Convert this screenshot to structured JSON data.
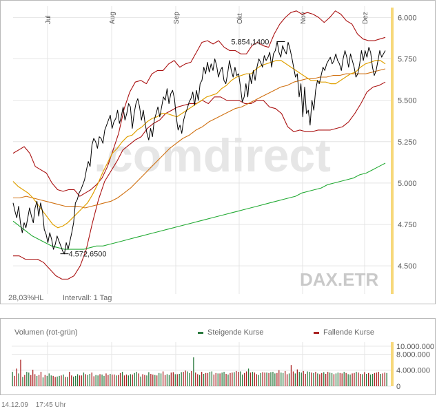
{
  "chart_data": [
    {
      "type": "line",
      "instrument": "DAX.ETR",
      "watermark": ".comdirect",
      "x_ticks": [
        "Jul",
        "Aug",
        "Sep",
        "Okt",
        "Nov",
        "Dez"
      ],
      "y_ticks": [
        "6.000",
        "5.750",
        "5.500",
        "5.250",
        "5.000",
        "4.750",
        "4.500"
      ],
      "ylim": [
        4330,
        6060
      ],
      "grid": true,
      "volatility_label": "28,03%HL",
      "interval_label": "Intervall: 1 Tag",
      "annotations": [
        {
          "text": "5.854,1400",
          "value": 5854.14,
          "index": 146
        },
        {
          "text": "4.572,6500",
          "value": 4572.65,
          "index": 28
        }
      ],
      "colors": {
        "price": "#000000",
        "bollinger": "#aa1111",
        "sma_short": "#e0a000",
        "sma_mid": "#d07010",
        "sma_long": "#22aa33",
        "right_bar": "#f7d87a"
      },
      "series": [
        {
          "role": "price",
          "values": [
            4880,
            4830,
            4790,
            4860,
            4760,
            4700,
            4760,
            4730,
            4790,
            4850,
            4800,
            4760,
            4850,
            4890,
            4800,
            4880,
            4830,
            4720,
            4690,
            4640,
            4700,
            4660,
            4600,
            4630,
            4680,
            4650,
            4620,
            4590,
            4572.65,
            4640,
            4600,
            4650,
            4700,
            4760,
            4880,
            4900,
            4940,
            4960,
            4990,
            5020,
            5080,
            5130,
            5100,
            5230,
            5270,
            5250,
            5210,
            5280,
            5270,
            5240,
            5320,
            5350,
            5380,
            5410,
            5330,
            5370,
            5390,
            5440,
            5360,
            5400,
            5460,
            5380,
            5420,
            5480,
            5460,
            5330,
            5420,
            5480,
            5510,
            5460,
            5380,
            5440,
            5360,
            5300,
            5260,
            5330,
            5280,
            5380,
            5420,
            5460,
            5400,
            5460,
            5520,
            5500,
            5570,
            5480,
            5540,
            5560,
            5510,
            5400,
            5320,
            5350,
            5300,
            5380,
            5420,
            5450,
            5490,
            5510,
            5550,
            5470,
            5560,
            5500,
            5600,
            5620,
            5700,
            5660,
            5730,
            5670,
            5720,
            5680,
            5750,
            5710,
            5640,
            5680,
            5700,
            5620,
            5600,
            5660,
            5740,
            5680,
            5640,
            5700,
            5650,
            5660,
            5580,
            5490,
            5520,
            5600,
            5520,
            5660,
            5600,
            5680,
            5620,
            5700,
            5750,
            5730,
            5700,
            5770,
            5740,
            5760,
            5790,
            5700,
            5780,
            5800,
            5854.14,
            5790,
            5760,
            5830,
            5800,
            5780,
            5850,
            5810,
            5760,
            5700,
            5640,
            5660,
            5520,
            5600,
            5400,
            5580,
            5420,
            5440,
            5350,
            5500,
            5440,
            5560,
            5620,
            5600,
            5650,
            5700,
            5680,
            5720,
            5740,
            5760,
            5720,
            5740,
            5780,
            5740,
            5720,
            5680,
            5750,
            5800,
            5760,
            5700,
            5780,
            5740,
            5700,
            5640,
            5660,
            5720,
            5800,
            5740,
            5800,
            5760,
            5820,
            5790,
            5700,
            5650,
            5680,
            5740,
            5800,
            5760,
            5780,
            5800
          ]
        },
        {
          "role": "bollinger_upper",
          "values": [
            5180,
            5200,
            5220,
            5180,
            5100,
            5080,
            5060,
            5000,
            4960,
            4950,
            4960,
            4960,
            4920,
            4940,
            4960,
            4990,
            5030,
            5100,
            5200,
            5300,
            5450,
            5550,
            5610,
            5620,
            5600,
            5660,
            5680,
            5680,
            5720,
            5740,
            5700,
            5720,
            5730,
            5790,
            5850,
            5860,
            5840,
            5860,
            5820,
            5800,
            5800,
            5780,
            5780,
            5830,
            5850,
            5830,
            5820,
            5900,
            5960,
            6000,
            6030,
            6040,
            6020,
            6030,
            6020,
            6000,
            5970,
            6000,
            6040,
            6020,
            5980,
            5960,
            5900,
            5870,
            5860,
            5860,
            5870,
            5880
          ]
        },
        {
          "role": "bollinger_lower",
          "values": [
            4560,
            4560,
            4540,
            4540,
            4540,
            4520,
            4480,
            4440,
            4420,
            4420,
            4440,
            4500,
            4600,
            4760,
            4900,
            5010,
            5070,
            5130,
            5200,
            5230,
            5260,
            5280,
            5330,
            5360,
            5380,
            5420,
            5440,
            5460,
            5470,
            5480,
            5480,
            5500,
            5480,
            5520,
            5520,
            5500,
            5500,
            5500,
            5480,
            5480,
            5500,
            5500,
            5460,
            5450,
            5420,
            5340,
            5310,
            5320,
            5310,
            5310,
            5320,
            5320,
            5320,
            5330,
            5340,
            5370,
            5420,
            5480,
            5550,
            5580,
            5590,
            5610
          ]
        },
        {
          "role": "sma_short",
          "values": [
            5010,
            4980,
            4960,
            4940,
            4910,
            4870,
            4830,
            4790,
            4750,
            4730,
            4740,
            4760,
            4790,
            4820,
            4850,
            4880,
            4930,
            4990,
            5060,
            5120,
            5180,
            5210,
            5250,
            5280,
            5290,
            5320,
            5340,
            5370,
            5390,
            5400,
            5420,
            5420,
            5410,
            5400,
            5420,
            5440,
            5460,
            5480,
            5500,
            5520,
            5530,
            5540,
            5570,
            5590,
            5620,
            5640,
            5650,
            5660,
            5660,
            5690,
            5710,
            5720,
            5730,
            5740,
            5740,
            5720,
            5700,
            5680,
            5660,
            5640,
            5620,
            5620,
            5610,
            5610,
            5600,
            5600,
            5620,
            5640,
            5660,
            5670,
            5700,
            5720,
            5730,
            5740,
            5740,
            5720
          ]
        },
        {
          "role": "sma_mid",
          "values": [
            4910,
            4910,
            4920,
            4910,
            4900,
            4890,
            4880,
            4870,
            4860,
            4860,
            4860,
            4850,
            4860,
            4870,
            4880,
            4890,
            4910,
            4940,
            4970,
            5010,
            5050,
            5090,
            5130,
            5170,
            5210,
            5240,
            5270,
            5290,
            5320,
            5340,
            5370,
            5390,
            5410,
            5430,
            5450,
            5460,
            5480,
            5500,
            5520,
            5540,
            5560,
            5580,
            5590,
            5610,
            5620,
            5630,
            5630,
            5640,
            5640,
            5650,
            5650,
            5660,
            5660,
            5660,
            5660,
            5670,
            5680,
            5690
          ]
        },
        {
          "role": "sma_long",
          "values": [
            4770,
            4740,
            4710,
            4680,
            4660,
            4640,
            4620,
            4610,
            4600,
            4600,
            4600,
            4600,
            4610,
            4620,
            4620,
            4630,
            4640,
            4650,
            4660,
            4670,
            4680,
            4690,
            4700,
            4710,
            4720,
            4730,
            4740,
            4750,
            4760,
            4770,
            4780,
            4790,
            4800,
            4810,
            4820,
            4830,
            4840,
            4850,
            4860,
            4870,
            4880,
            4890,
            4900,
            4910,
            4920,
            4940,
            4950,
            4960,
            4970,
            4990,
            5000,
            5010,
            5020,
            5030,
            5050,
            5060,
            5080,
            5100,
            5120
          ]
        }
      ]
    },
    {
      "type": "bar",
      "title": "Volumen (rot-grün)",
      "legend": [
        {
          "name": "Steigende Kurse",
          "color": "#2b7a3f"
        },
        {
          "name": "Fallende Kurse",
          "color": "#aa2222"
        }
      ],
      "y_ticks": [
        "10.000.000",
        "8.000.000",
        "4.000.000",
        "0"
      ],
      "ylim": [
        0,
        11000000
      ],
      "grid": true,
      "directions": "uddududuudddudduduuudduudududduuudduduudduuduuddudduddudduuduududduudduduudduudduduudduududdududduudduduududdudduuddududduudduduuudduuddudduduudduudududdudduuduudduduudd",
      "values": [
        3600000,
        2600000,
        4400000,
        3200000,
        6600000,
        2300000,
        2800000,
        3600000,
        3400000,
        2800000,
        4100000,
        3000000,
        2600000,
        2800000,
        3600000,
        2200000,
        2800000,
        2600000,
        3200000,
        2700000,
        2600000,
        2300000,
        2400000,
        2600000,
        2700000,
        2900000,
        2300000,
        2300000,
        3600000,
        2700000,
        2400000,
        2600000,
        3000000,
        2700000,
        2700000,
        3400000,
        3000000,
        2800000,
        3100000,
        3400000,
        2500000,
        2800000,
        2700000,
        3000000,
        2900000,
        2600000,
        3200000,
        2800000,
        3100000,
        2900000,
        2900000,
        2700000,
        2800000,
        3300000,
        3600000,
        2700000,
        2900000,
        2700000,
        3000000,
        2900000,
        3300000,
        3600000,
        3200000,
        2400000,
        3000000,
        2800000,
        2700000,
        3500000,
        3100000,
        2900000,
        2800000,
        2700000,
        3300000,
        3200000,
        3700000,
        2800000,
        3000000,
        2800000,
        3400000,
        3500000,
        3000000,
        3000000,
        3100000,
        3500000,
        3600000,
        3900000,
        3700000,
        3300000,
        3800000,
        7200000,
        3400000,
        3000000,
        2800000,
        3600000,
        3100000,
        3300000,
        3300000,
        3600000,
        3700000,
        2900000,
        3300000,
        3200000,
        3200000,
        3400000,
        3600000,
        3100000,
        2900000,
        3300000,
        3400000,
        3500000,
        3800000,
        3600000,
        3700000,
        2900000,
        3300000,
        3700000,
        4400000,
        3400000,
        3600000,
        3400000,
        3000000,
        2800000,
        3300000,
        3500000,
        3400000,
        3400000,
        3300000,
        3500000,
        3600000,
        3200000,
        3300000,
        4000000,
        3400000,
        3300000,
        3800000,
        3000000,
        3200000,
        5300000,
        3700000,
        3200000,
        4200000,
        3600000,
        3400000,
        3800000,
        3100000,
        3700000,
        3600000,
        3400000,
        3300000,
        3600000,
        3200000,
        3000000,
        3300000,
        3500000,
        3100000,
        3600000,
        3400000,
        3300000,
        3000000,
        3200000,
        3400000,
        3300000,
        3200000,
        3600000,
        3300000,
        3000000,
        2900000,
        3200000,
        3300000,
        3600000,
        3400000,
        3100000,
        3000000,
        3500000,
        3100000,
        3300000,
        2900000,
        3100000,
        3300000,
        3400000,
        3600000,
        3100000,
        3200000,
        3400000,
        3300000
      ]
    }
  ],
  "footer": {
    "date": "14.12.09",
    "time": "17:45 Uhr"
  }
}
